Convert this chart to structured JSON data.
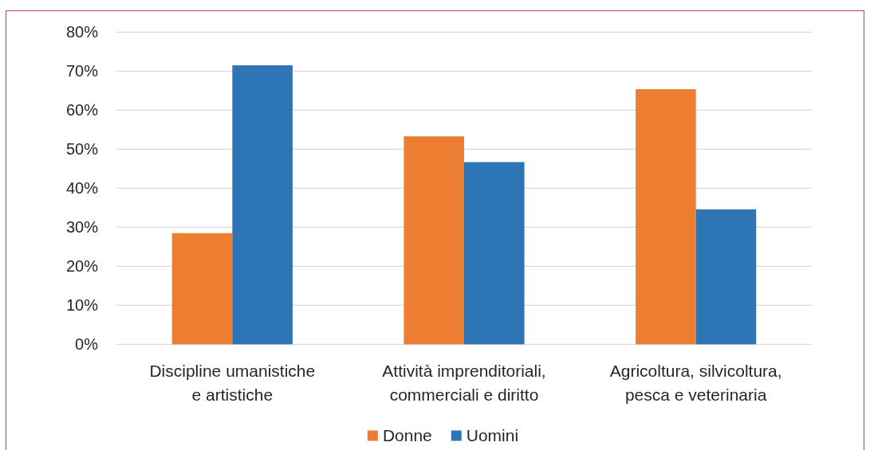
{
  "chart_data": {
    "type": "bar",
    "categories": [
      "Discipline umanistiche e artistiche",
      "Attività imprenditoriali, commerciali e diritto",
      "Agricoltura, silvicoltura, pesca e veterinaria"
    ],
    "series": [
      {
        "name": "Donne",
        "color": "#ed7d31",
        "values": [
          28.5,
          53.3,
          65.4
        ]
      },
      {
        "name": "Uomini",
        "color": "#2e75b6",
        "values": [
          71.5,
          46.7,
          34.6
        ]
      }
    ],
    "ylim": [
      0,
      80
    ],
    "yticks": [
      {
        "value": 0,
        "label": "0%"
      },
      {
        "value": 10,
        "label": "10%"
      },
      {
        "value": 20,
        "label": "20%"
      },
      {
        "value": 30,
        "label": "30%"
      },
      {
        "value": 40,
        "label": "40%"
      },
      {
        "value": 50,
        "label": "50%"
      },
      {
        "value": 60,
        "label": "60%"
      },
      {
        "value": 70,
        "label": "70%"
      },
      {
        "value": 80,
        "label": "80%"
      }
    ],
    "grid": "y",
    "legend": "bottom"
  }
}
